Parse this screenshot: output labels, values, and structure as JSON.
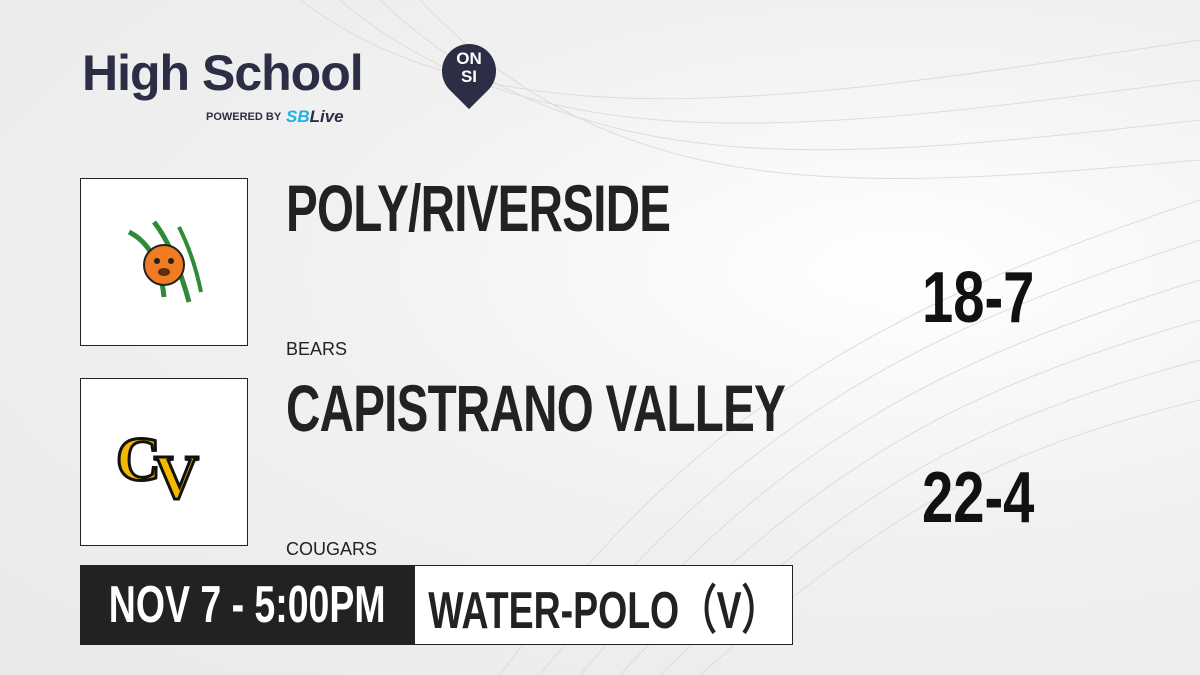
{
  "brand": {
    "title": "High School",
    "badge_top": "ON",
    "badge_bottom": "SI",
    "powered_by": "POWERED BY",
    "partner_prefix": "SB",
    "partner_suffix": "Live"
  },
  "teams": [
    {
      "name": "POLY/RIVERSIDE",
      "mascot": "BEARS",
      "record": "18-7",
      "logo_icon": "bear-claw-logo",
      "colors": [
        "#f07b22",
        "#2e8b3a"
      ]
    },
    {
      "name": "CAPISTRANO VALLEY",
      "mascot": "COUGARS",
      "record": "22-4",
      "logo_icon": "cv-letters-logo",
      "colors": [
        "#f5b800",
        "#111111"
      ]
    }
  ],
  "game": {
    "datetime": "NOV 7 - 5:00PM",
    "sport": "WATER-POLO（V）"
  }
}
